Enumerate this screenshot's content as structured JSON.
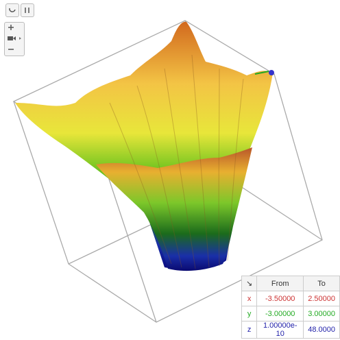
{
  "table": {
    "header": [
      "From",
      "To"
    ],
    "rows": [
      [
        "x",
        "-3.50000",
        "2.50000"
      ],
      [
        "y",
        "-3.00000",
        "3.00000"
      ],
      [
        "z",
        "1.00000e-10",
        "48.0000"
      ]
    ]
  }
}
